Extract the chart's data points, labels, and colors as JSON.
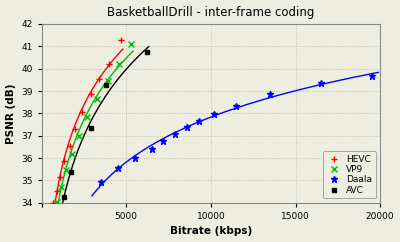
{
  "title": "BasketballDrill - inter-frame coding",
  "xlabel": "Bitrate (kbps)",
  "ylabel": "PSNR (dB)",
  "xlim": [
    0,
    20000
  ],
  "ylim": [
    34,
    42
  ],
  "yticks": [
    34,
    35,
    36,
    37,
    38,
    39,
    40,
    41,
    42
  ],
  "xticks": [
    0,
    5000,
    10000,
    15000,
    20000
  ],
  "background_color": "#eeeee0",
  "grid_color": "#bbbbaa",
  "series": {
    "HEVC": {
      "color": "#ff0000",
      "marker": "+",
      "x": [
        700,
        900,
        1100,
        1350,
        1650,
        2000,
        2400,
        2900,
        3400,
        4000,
        4700
      ],
      "y": [
        34.0,
        34.55,
        35.15,
        35.85,
        36.55,
        37.3,
        38.05,
        38.85,
        39.55,
        40.2,
        41.3
      ]
    },
    "VP9": {
      "color": "#00bb00",
      "marker": "x",
      "x": [
        900,
        1150,
        1450,
        1800,
        2200,
        2700,
        3250,
        3900,
        4600,
        5300
      ],
      "y": [
        34.05,
        34.7,
        35.45,
        36.2,
        37.0,
        37.85,
        38.65,
        39.45,
        40.2,
        41.1
      ]
    },
    "Daala": {
      "color": "#0000ff",
      "marker": "*",
      "x": [
        3500,
        4500,
        5500,
        6500,
        7200,
        7900,
        8600,
        9300,
        10200,
        11500,
        13500,
        16500,
        19500
      ],
      "y": [
        34.95,
        35.55,
        36.0,
        36.4,
        36.75,
        37.1,
        37.4,
        37.65,
        37.95,
        38.35,
        38.85,
        39.35,
        39.65
      ]
    },
    "AVC": {
      "color": "#000000",
      "marker": "s",
      "x": [
        1300,
        1750,
        2900,
        3800,
        6200
      ],
      "y": [
        34.25,
        35.4,
        37.35,
        39.25,
        40.75
      ]
    }
  }
}
